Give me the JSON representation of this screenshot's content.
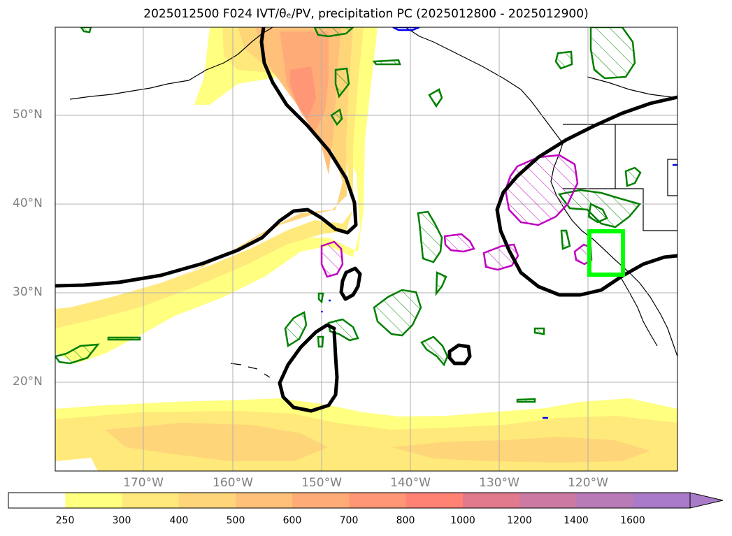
{
  "title": "2025012500 F024 IVT/θₑ/PV, precipitation PC (2025012800 - 2025012900)",
  "latitude_labels": [
    "50°N",
    "40°N",
    "30°N",
    "20°N"
  ],
  "longitude_labels": [
    "170°W",
    "160°W",
    "150°W",
    "140°W",
    "130°W",
    "120°W"
  ],
  "colorbar": {
    "ticks": [
      "250",
      "300",
      "400",
      "500",
      "600",
      "700",
      "800",
      "1000",
      "1200",
      "1400",
      "1600"
    ],
    "colors": [
      "#ffffff",
      "#ffff80",
      "#ffe97a",
      "#ffd57a",
      "#ffc07a",
      "#ffab78",
      "#ff9676",
      "#ff8275",
      "#e07a8c",
      "#cc7aa4",
      "#b97ab8",
      "#a97ac8"
    ],
    "extend": "max"
  },
  "colors": {
    "ivt_contour": "#000000",
    "precip_green": "#008000",
    "precip_magenta": "#c000c0",
    "highlight_box": "#00ff00",
    "coastline": "#000000",
    "gridline": "#b0b0b0"
  }
}
